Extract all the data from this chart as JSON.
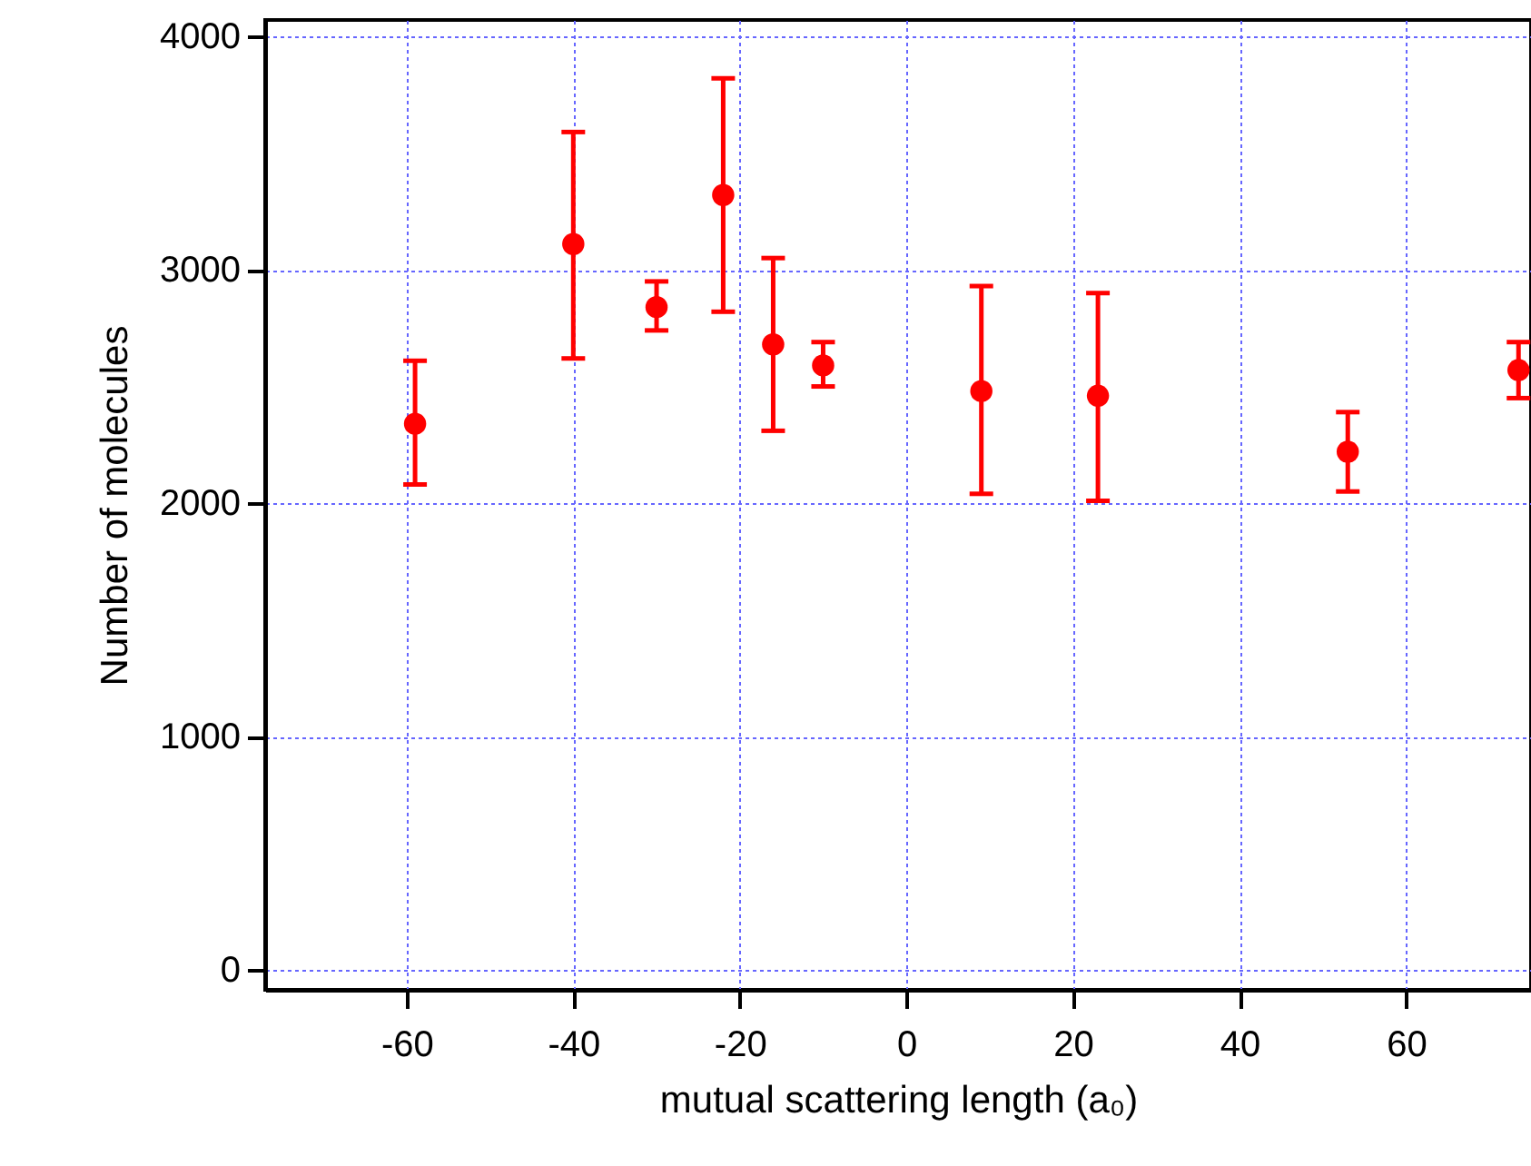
{
  "chart_data": {
    "type": "scatter",
    "xlabel": "mutual scattering length (a₀)",
    "ylabel": "Number of molecules",
    "x": [
      -59,
      -40,
      -30,
      -22,
      -16,
      -10,
      9,
      23,
      53,
      73.5
    ],
    "values": [
      2340,
      3110,
      2840,
      3320,
      2680,
      2590,
      2480,
      2460,
      2220,
      2570
    ],
    "errors": [
      [
        2080,
        2610
      ],
      [
        2620,
        3590
      ],
      [
        2740,
        2950
      ],
      [
        2820,
        3820
      ],
      [
        2310,
        3050
      ],
      [
        2500,
        2690
      ],
      [
        2040,
        2930
      ],
      [
        2010,
        2900
      ],
      [
        2050,
        2390
      ],
      [
        2450,
        2690
      ]
    ],
    "color": "#ff0000",
    "marker": "circle",
    "grid": true,
    "xlim": [
      -77,
      75
    ],
    "ylim": [
      -85,
      4070
    ],
    "xticks": [
      -60,
      -40,
      -20,
      0,
      20,
      40,
      60
    ],
    "yticks": [
      0,
      1000,
      2000,
      3000,
      4000
    ]
  }
}
